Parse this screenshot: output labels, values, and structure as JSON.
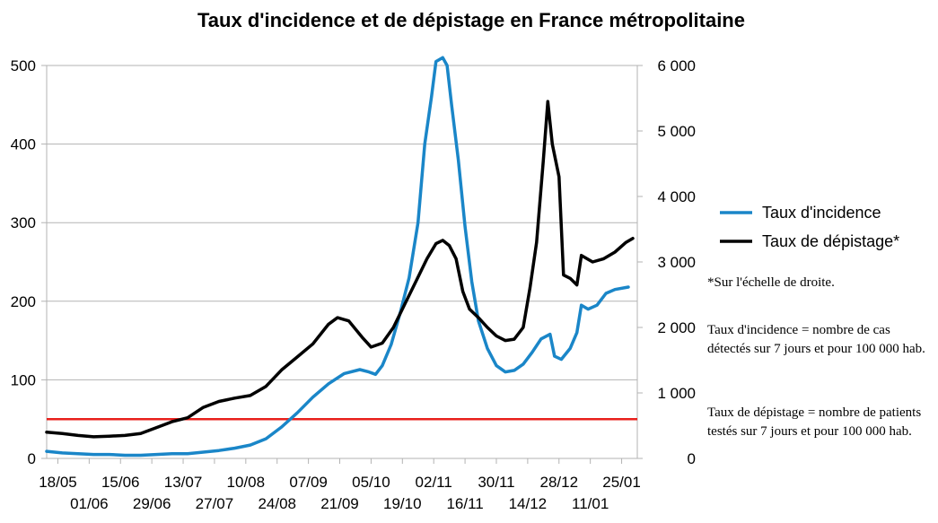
{
  "chart_data": {
    "type": "line",
    "title": "Taux d'incidence et de dépistage en France métropolitaine",
    "x_tick_labels_row1": [
      "18/05",
      "15/06",
      "13/07",
      "10/08",
      "07/09",
      "05/10",
      "02/11",
      "30/11",
      "28/12",
      "25/01"
    ],
    "x_tick_labels_row2": [
      "01/06",
      "29/06",
      "27/07",
      "24/08",
      "21/09",
      "19/10",
      "16/11",
      "14/12",
      "11/01"
    ],
    "x_range": [
      "2020-05-13",
      "2021-02-01"
    ],
    "y_left": {
      "range": [
        0,
        500
      ],
      "ticks": [
        "0",
        "100",
        "200",
        "300",
        "400",
        "500"
      ]
    },
    "y_right": {
      "range": [
        0,
        6000
      ],
      "ticks": [
        "0",
        "1 000",
        "2 000",
        "3 000",
        "4 000",
        "5 000",
        "6 000"
      ]
    },
    "grid": "horizontal",
    "threshold": {
      "value": 50,
      "color": "#e8201c"
    },
    "legend_position": "right",
    "series": [
      {
        "name": "Taux d'incidence",
        "axis": "left",
        "color": "#1a86c8",
        "points": [
          [
            "2020-05-13",
            9
          ],
          [
            "2020-05-20",
            7
          ],
          [
            "2020-05-27",
            6
          ],
          [
            "2020-06-03",
            5
          ],
          [
            "2020-06-10",
            5
          ],
          [
            "2020-06-17",
            4
          ],
          [
            "2020-06-24",
            4
          ],
          [
            "2020-07-01",
            5
          ],
          [
            "2020-07-08",
            6
          ],
          [
            "2020-07-15",
            6
          ],
          [
            "2020-07-22",
            8
          ],
          [
            "2020-07-29",
            10
          ],
          [
            "2020-08-05",
            13
          ],
          [
            "2020-08-12",
            17
          ],
          [
            "2020-08-19",
            25
          ],
          [
            "2020-08-26",
            40
          ],
          [
            "2020-09-02",
            58
          ],
          [
            "2020-09-09",
            78
          ],
          [
            "2020-09-16",
            95
          ],
          [
            "2020-09-23",
            108
          ],
          [
            "2020-09-30",
            113
          ],
          [
            "2020-10-04",
            110
          ],
          [
            "2020-10-07",
            107
          ],
          [
            "2020-10-10",
            118
          ],
          [
            "2020-10-14",
            145
          ],
          [
            "2020-10-18",
            185
          ],
          [
            "2020-10-22",
            230
          ],
          [
            "2020-10-26",
            300
          ],
          [
            "2020-10-29",
            400
          ],
          [
            "2020-11-01",
            460
          ],
          [
            "2020-11-03",
            505
          ],
          [
            "2020-11-06",
            510
          ],
          [
            "2020-11-08",
            500
          ],
          [
            "2020-11-10",
            450
          ],
          [
            "2020-11-13",
            380
          ],
          [
            "2020-11-16",
            295
          ],
          [
            "2020-11-19",
            225
          ],
          [
            "2020-11-22",
            175
          ],
          [
            "2020-11-26",
            140
          ],
          [
            "2020-11-30",
            118
          ],
          [
            "2020-12-04",
            110
          ],
          [
            "2020-12-08",
            112
          ],
          [
            "2020-12-12",
            120
          ],
          [
            "2020-12-16",
            135
          ],
          [
            "2020-12-20",
            152
          ],
          [
            "2020-12-24",
            158
          ],
          [
            "2020-12-26",
            130
          ],
          [
            "2020-12-29",
            126
          ],
          [
            "2021-01-02",
            140
          ],
          [
            "2021-01-05",
            160
          ],
          [
            "2021-01-07",
            195
          ],
          [
            "2021-01-10",
            190
          ],
          [
            "2021-01-14",
            195
          ],
          [
            "2021-01-18",
            210
          ],
          [
            "2021-01-22",
            215
          ],
          [
            "2021-01-28",
            218
          ]
        ]
      },
      {
        "name": "Taux de dépistage*",
        "axis": "right",
        "color": "#000000",
        "points": [
          [
            "2020-05-13",
            400
          ],
          [
            "2020-05-20",
            380
          ],
          [
            "2020-05-27",
            350
          ],
          [
            "2020-06-03",
            330
          ],
          [
            "2020-06-10",
            340
          ],
          [
            "2020-06-17",
            350
          ],
          [
            "2020-06-24",
            380
          ],
          [
            "2020-07-01",
            470
          ],
          [
            "2020-07-08",
            560
          ],
          [
            "2020-07-15",
            620
          ],
          [
            "2020-07-22",
            780
          ],
          [
            "2020-07-29",
            870
          ],
          [
            "2020-08-05",
            920
          ],
          [
            "2020-08-12",
            960
          ],
          [
            "2020-08-19",
            1100
          ],
          [
            "2020-08-26",
            1350
          ],
          [
            "2020-09-02",
            1550
          ],
          [
            "2020-09-09",
            1750
          ],
          [
            "2020-09-16",
            2050
          ],
          [
            "2020-09-20",
            2150
          ],
          [
            "2020-09-25",
            2100
          ],
          [
            "2020-10-01",
            1850
          ],
          [
            "2020-10-05",
            1700
          ],
          [
            "2020-10-10",
            1760
          ],
          [
            "2020-10-15",
            2000
          ],
          [
            "2020-10-20",
            2350
          ],
          [
            "2020-10-25",
            2700
          ],
          [
            "2020-10-30",
            3050
          ],
          [
            "2020-11-03",
            3280
          ],
          [
            "2020-11-06",
            3330
          ],
          [
            "2020-11-09",
            3250
          ],
          [
            "2020-11-12",
            3050
          ],
          [
            "2020-11-15",
            2550
          ],
          [
            "2020-11-18",
            2280
          ],
          [
            "2020-11-22",
            2150
          ],
          [
            "2020-11-26",
            2000
          ],
          [
            "2020-11-30",
            1870
          ],
          [
            "2020-12-04",
            1800
          ],
          [
            "2020-12-08",
            1820
          ],
          [
            "2020-12-12",
            2000
          ],
          [
            "2020-12-15",
            2600
          ],
          [
            "2020-12-18",
            3300
          ],
          [
            "2020-12-21",
            4550
          ],
          [
            "2020-12-23",
            5450
          ],
          [
            "2020-12-25",
            4800
          ],
          [
            "2020-12-28",
            4300
          ],
          [
            "2020-12-30",
            2800
          ],
          [
            "2021-01-02",
            2750
          ],
          [
            "2021-01-05",
            2650
          ],
          [
            "2021-01-07",
            3100
          ],
          [
            "2021-01-12",
            3000
          ],
          [
            "2021-01-17",
            3050
          ],
          [
            "2021-01-22",
            3150
          ],
          [
            "2021-01-27",
            3300
          ],
          [
            "2021-01-30",
            3360
          ]
        ]
      }
    ]
  },
  "legend": {
    "items": [
      {
        "label": "Taux d'incidence",
        "color": "#1a86c8"
      },
      {
        "label": "Taux de dépistage*",
        "color": "#000000"
      }
    ]
  },
  "notes": {
    "scale": "*Sur l'échelle de droite.",
    "incidence_definition": "Taux d'incidence = nombre de cas détectés sur 7 jours et pour 100 000 hab.",
    "testing_definition": "Taux de dépistage = nombre de patients testés sur 7 jours et pour 100 000 hab."
  }
}
